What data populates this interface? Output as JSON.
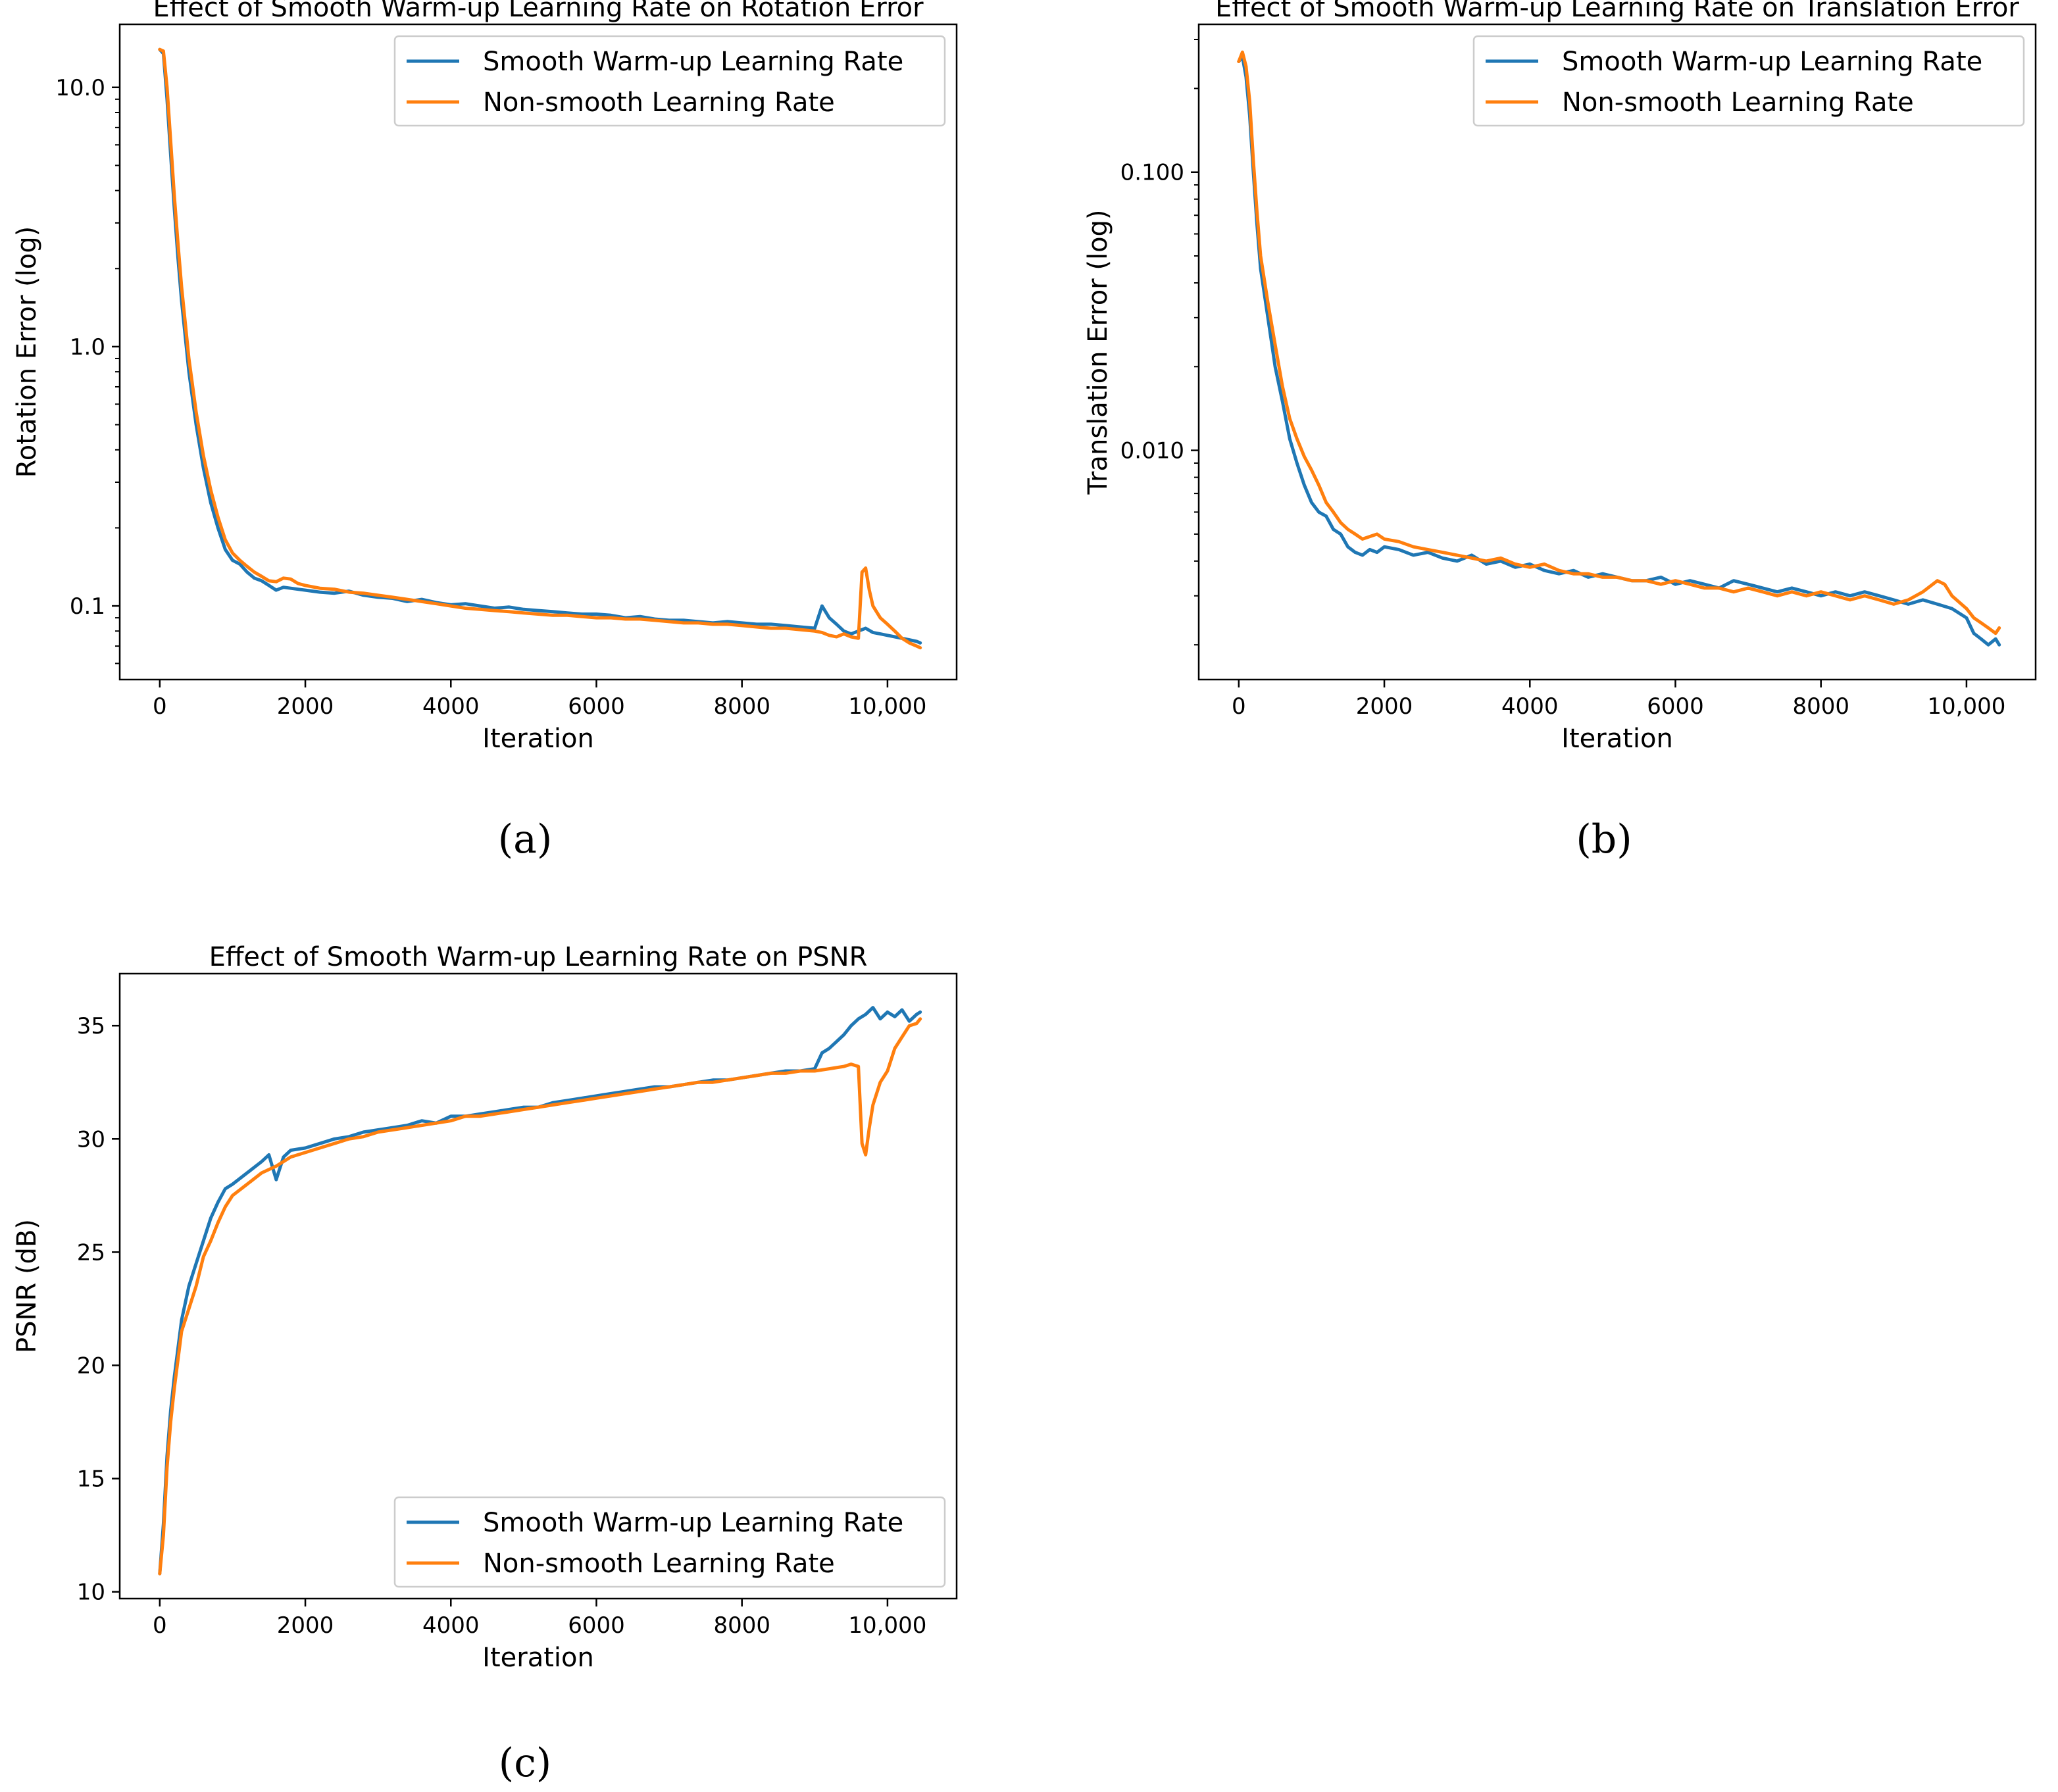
{
  "colors": {
    "smooth": "#1f77b4",
    "nonsmooth": "#ff7f0e",
    "axis": "#000000",
    "legend_border": "#cccccc"
  },
  "chart_data": [
    {
      "id": "a",
      "type": "line",
      "title": "Effect of Smooth Warm-up Learning Rate on Rotation Error",
      "xlabel": "Iteration",
      "ylabel": "Rotation Error (log)",
      "yscale": "log",
      "xlim": [
        -550,
        10950
      ],
      "ylim": [
        0.052,
        17.5
      ],
      "xticks": [
        0,
        2000,
        4000,
        6000,
        8000,
        10000
      ],
      "xtick_labels": [
        "0",
        "2000",
        "4000",
        "6000",
        "8000",
        "10,000"
      ],
      "yticks": [
        0.1,
        1.0,
        10.0
      ],
      "ytick_labels": [
        "0.1",
        "1.0",
        "10.0"
      ],
      "legend": {
        "position": "top-right",
        "entries": [
          "Smooth Warm-up Learning Rate",
          "Non-smooth Learning Rate"
        ]
      },
      "panel_label": "(a)",
      "series": [
        {
          "name": "Smooth Warm-up Learning Rate",
          "color_key": "smooth",
          "x": [
            0,
            50,
            100,
            150,
            200,
            250,
            300,
            400,
            500,
            600,
            700,
            800,
            900,
            1000,
            1100,
            1200,
            1300,
            1400,
            1500,
            1600,
            1700,
            1800,
            1900,
            2000,
            2200,
            2400,
            2600,
            2800,
            3000,
            3200,
            3400,
            3600,
            3800,
            4000,
            4200,
            4400,
            4600,
            4800,
            5000,
            5200,
            5400,
            5600,
            5800,
            6000,
            6200,
            6400,
            6600,
            6800,
            7000,
            7200,
            7400,
            7600,
            7800,
            8000,
            8200,
            8400,
            8600,
            8800,
            9000,
            9100,
            9200,
            9300,
            9400,
            9500,
            9600,
            9700,
            9800,
            9900,
            10000,
            10100,
            10200,
            10300,
            10400,
            10450
          ],
          "y": [
            14,
            13.5,
            9,
            5.5,
            3.4,
            2.2,
            1.5,
            0.8,
            0.5,
            0.34,
            0.25,
            0.2,
            0.165,
            0.15,
            0.145,
            0.135,
            0.128,
            0.125,
            0.12,
            0.115,
            0.118,
            0.117,
            0.116,
            0.115,
            0.113,
            0.112,
            0.114,
            0.11,
            0.108,
            0.107,
            0.104,
            0.106,
            0.103,
            0.101,
            0.102,
            0.1,
            0.098,
            0.099,
            0.097,
            0.096,
            0.095,
            0.094,
            0.093,
            0.093,
            0.092,
            0.09,
            0.091,
            0.089,
            0.088,
            0.088,
            0.087,
            0.086,
            0.087,
            0.086,
            0.085,
            0.085,
            0.084,
            0.083,
            0.082,
            0.1,
            0.09,
            0.085,
            0.08,
            0.078,
            0.08,
            0.082,
            0.079,
            0.078,
            0.077,
            0.076,
            0.075,
            0.074,
            0.073,
            0.072
          ]
        },
        {
          "name": "Non-smooth Learning Rate",
          "color_key": "nonsmooth",
          "x": [
            0,
            50,
            100,
            150,
            200,
            250,
            300,
            400,
            500,
            600,
            700,
            800,
            900,
            1000,
            1100,
            1200,
            1300,
            1400,
            1500,
            1600,
            1700,
            1800,
            1900,
            2000,
            2200,
            2400,
            2600,
            2800,
            3000,
            3200,
            3400,
            3600,
            3800,
            4000,
            4200,
            4400,
            4600,
            4800,
            5000,
            5200,
            5400,
            5600,
            5800,
            6000,
            6200,
            6400,
            6600,
            6800,
            7000,
            7200,
            7400,
            7600,
            7800,
            8000,
            8200,
            8400,
            8600,
            8800,
            9000,
            9100,
            9200,
            9300,
            9400,
            9500,
            9600,
            9650,
            9700,
            9750,
            9800,
            9900,
            10000,
            10100,
            10200,
            10300,
            10400,
            10450
          ],
          "y": [
            14,
            13.8,
            10,
            6.2,
            3.8,
            2.5,
            1.7,
            0.9,
            0.56,
            0.38,
            0.28,
            0.22,
            0.18,
            0.16,
            0.15,
            0.142,
            0.135,
            0.13,
            0.125,
            0.124,
            0.128,
            0.127,
            0.122,
            0.12,
            0.117,
            0.116,
            0.113,
            0.112,
            0.11,
            0.108,
            0.106,
            0.104,
            0.102,
            0.1,
            0.098,
            0.097,
            0.096,
            0.095,
            0.094,
            0.093,
            0.092,
            0.092,
            0.091,
            0.09,
            0.09,
            0.089,
            0.089,
            0.088,
            0.087,
            0.086,
            0.086,
            0.085,
            0.085,
            0.084,
            0.083,
            0.082,
            0.082,
            0.081,
            0.08,
            0.079,
            0.077,
            0.076,
            0.078,
            0.076,
            0.075,
            0.135,
            0.14,
            0.115,
            0.1,
            0.09,
            0.085,
            0.08,
            0.075,
            0.072,
            0.07,
            0.069
          ]
        }
      ]
    },
    {
      "id": "b",
      "type": "line",
      "title": "Effect of Smooth Warm-up Learning Rate on Translation Error",
      "xlabel": "Iteration",
      "ylabel": "Translation Error (log)",
      "yscale": "log",
      "xlim": [
        -550,
        10950
      ],
      "ylim": [
        0.0015,
        0.34
      ],
      "xticks": [
        0,
        2000,
        4000,
        6000,
        8000,
        10000
      ],
      "xtick_labels": [
        "0",
        "2000",
        "4000",
        "6000",
        "8000",
        "10,000"
      ],
      "yticks": [
        0.01,
        0.1
      ],
      "ytick_labels": [
        "0.010",
        "0.100"
      ],
      "legend": {
        "position": "top-right",
        "entries": [
          "Smooth Warm-up Learning Rate",
          "Non-smooth Learning Rate"
        ]
      },
      "panel_label": "(b)",
      "series": [
        {
          "name": "Smooth Warm-up Learning Rate",
          "color_key": "smooth",
          "x": [
            0,
            50,
            100,
            150,
            200,
            250,
            300,
            400,
            500,
            600,
            700,
            800,
            900,
            1000,
            1100,
            1200,
            1300,
            1400,
            1500,
            1600,
            1700,
            1800,
            1900,
            2000,
            2200,
            2400,
            2600,
            2800,
            3000,
            3200,
            3400,
            3600,
            3800,
            4000,
            4200,
            4400,
            4600,
            4800,
            5000,
            5200,
            5400,
            5600,
            5800,
            6000,
            6200,
            6400,
            6600,
            6800,
            7000,
            7200,
            7400,
            7600,
            7800,
            8000,
            8200,
            8400,
            8600,
            8800,
            9000,
            9200,
            9400,
            9600,
            9800,
            10000,
            10100,
            10200,
            10300,
            10400,
            10450
          ],
          "y": [
            0.25,
            0.26,
            0.22,
            0.16,
            0.1,
            0.065,
            0.045,
            0.03,
            0.02,
            0.015,
            0.011,
            0.009,
            0.0075,
            0.0065,
            0.006,
            0.0058,
            0.0052,
            0.005,
            0.0045,
            0.0043,
            0.0042,
            0.0044,
            0.0043,
            0.0045,
            0.0044,
            0.0042,
            0.0043,
            0.0041,
            0.004,
            0.0042,
            0.0039,
            0.004,
            0.0038,
            0.0039,
            0.0037,
            0.0036,
            0.0037,
            0.0035,
            0.0036,
            0.0035,
            0.0034,
            0.0034,
            0.0035,
            0.0033,
            0.0034,
            0.0033,
            0.0032,
            0.0034,
            0.0033,
            0.0032,
            0.0031,
            0.0032,
            0.0031,
            0.003,
            0.0031,
            0.003,
            0.0031,
            0.003,
            0.0029,
            0.0028,
            0.0029,
            0.0028,
            0.0027,
            0.0025,
            0.0022,
            0.0021,
            0.002,
            0.0021,
            0.002
          ]
        },
        {
          "name": "Non-smooth Learning Rate",
          "color_key": "nonsmooth",
          "x": [
            0,
            50,
            100,
            150,
            200,
            250,
            300,
            400,
            500,
            600,
            700,
            800,
            900,
            1000,
            1100,
            1200,
            1300,
            1400,
            1500,
            1600,
            1700,
            1800,
            1900,
            2000,
            2200,
            2400,
            2600,
            2800,
            3000,
            3200,
            3400,
            3600,
            3800,
            4000,
            4200,
            4400,
            4600,
            4800,
            5000,
            5200,
            5400,
            5600,
            5800,
            6000,
            6200,
            6400,
            6600,
            6800,
            7000,
            7200,
            7400,
            7600,
            7800,
            8000,
            8200,
            8400,
            8600,
            8800,
            9000,
            9200,
            9400,
            9600,
            9700,
            9800,
            10000,
            10100,
            10200,
            10300,
            10400,
            10450
          ],
          "y": [
            0.25,
            0.27,
            0.24,
            0.18,
            0.11,
            0.072,
            0.05,
            0.034,
            0.024,
            0.017,
            0.013,
            0.011,
            0.0095,
            0.0085,
            0.0075,
            0.0065,
            0.006,
            0.0055,
            0.0052,
            0.005,
            0.0048,
            0.0049,
            0.005,
            0.0048,
            0.0047,
            0.0045,
            0.0044,
            0.0043,
            0.0042,
            0.0041,
            0.004,
            0.0041,
            0.0039,
            0.0038,
            0.0039,
            0.0037,
            0.0036,
            0.0036,
            0.0035,
            0.0035,
            0.0034,
            0.0034,
            0.0033,
            0.0034,
            0.0033,
            0.0032,
            0.0032,
            0.0031,
            0.0032,
            0.0031,
            0.003,
            0.0031,
            0.003,
            0.0031,
            0.003,
            0.0029,
            0.003,
            0.0029,
            0.0028,
            0.0029,
            0.0031,
            0.0034,
            0.0033,
            0.003,
            0.0027,
            0.0025,
            0.0024,
            0.0023,
            0.0022,
            0.0023
          ]
        }
      ]
    },
    {
      "id": "c",
      "type": "line",
      "title": "Effect of Smooth Warm-up Learning Rate on PSNR",
      "xlabel": "Iteration",
      "ylabel": "PSNR (dB)",
      "yscale": "linear",
      "xlim": [
        -550,
        10950
      ],
      "ylim": [
        9.7,
        37.3
      ],
      "xticks": [
        0,
        2000,
        4000,
        6000,
        8000,
        10000
      ],
      "xtick_labels": [
        "0",
        "2000",
        "4000",
        "6000",
        "8000",
        "10,000"
      ],
      "yticks": [
        10,
        15,
        20,
        25,
        30,
        35
      ],
      "ytick_labels": [
        "10",
        "15",
        "20",
        "25",
        "30",
        "35"
      ],
      "legend": {
        "position": "bottom-right",
        "entries": [
          "Smooth Warm-up Learning Rate",
          "Non-smooth Learning Rate"
        ]
      },
      "panel_label": "(c)",
      "series": [
        {
          "name": "Smooth Warm-up Learning Rate",
          "color_key": "smooth",
          "x": [
            0,
            50,
            100,
            150,
            200,
            300,
            400,
            500,
            600,
            700,
            800,
            900,
            1000,
            1200,
            1400,
            1500,
            1600,
            1700,
            1800,
            2000,
            2200,
            2400,
            2600,
            2800,
            3000,
            3200,
            3400,
            3600,
            3800,
            4000,
            4200,
            4400,
            4600,
            4800,
            5000,
            5200,
            5400,
            5600,
            5800,
            6000,
            6200,
            6400,
            6600,
            6800,
            7000,
            7200,
            7400,
            7600,
            7800,
            8000,
            8200,
            8400,
            8600,
            8800,
            9000,
            9100,
            9200,
            9300,
            9400,
            9500,
            9600,
            9700,
            9800,
            9900,
            10000,
            10100,
            10200,
            10300,
            10400,
            10450
          ],
          "y": [
            10.8,
            13,
            16,
            18,
            19.5,
            22,
            23.5,
            24.5,
            25.5,
            26.5,
            27.2,
            27.8,
            28,
            28.5,
            29,
            29.3,
            28.2,
            29.2,
            29.5,
            29.6,
            29.8,
            30,
            30.1,
            30.3,
            30.4,
            30.5,
            30.6,
            30.8,
            30.7,
            31,
            31,
            31.1,
            31.2,
            31.3,
            31.4,
            31.4,
            31.6,
            31.7,
            31.8,
            31.9,
            32,
            32.1,
            32.2,
            32.3,
            32.3,
            32.4,
            32.5,
            32.6,
            32.6,
            32.7,
            32.8,
            32.9,
            33,
            33,
            33.1,
            33.8,
            34,
            34.3,
            34.6,
            35,
            35.3,
            35.5,
            35.8,
            35.3,
            35.6,
            35.4,
            35.7,
            35.2,
            35.5,
            35.6
          ]
        },
        {
          "name": "Non-smooth Learning Rate",
          "color_key": "nonsmooth",
          "x": [
            0,
            50,
            100,
            150,
            200,
            300,
            400,
            500,
            600,
            700,
            800,
            900,
            1000,
            1200,
            1400,
            1600,
            1800,
            2000,
            2200,
            2400,
            2600,
            2800,
            3000,
            3200,
            3400,
            3600,
            3800,
            4000,
            4200,
            4400,
            4600,
            4800,
            5000,
            5200,
            5400,
            5600,
            5800,
            6000,
            6200,
            6400,
            6600,
            6800,
            7000,
            7200,
            7400,
            7600,
            7800,
            8000,
            8200,
            8400,
            8600,
            8800,
            9000,
            9200,
            9400,
            9500,
            9600,
            9650,
            9700,
            9750,
            9800,
            9900,
            10000,
            10100,
            10200,
            10300,
            10400,
            10450
          ],
          "y": [
            10.8,
            12.5,
            15.5,
            17.5,
            19,
            21.5,
            22.5,
            23.5,
            24.8,
            25.5,
            26.3,
            27,
            27.5,
            28,
            28.5,
            28.8,
            29.2,
            29.4,
            29.6,
            29.8,
            30,
            30.1,
            30.3,
            30.4,
            30.5,
            30.6,
            30.7,
            30.8,
            31,
            31,
            31.1,
            31.2,
            31.3,
            31.4,
            31.5,
            31.6,
            31.7,
            31.8,
            31.9,
            32,
            32.1,
            32.2,
            32.3,
            32.4,
            32.5,
            32.5,
            32.6,
            32.7,
            32.8,
            32.9,
            32.9,
            33,
            33,
            33.1,
            33.2,
            33.3,
            33.2,
            29.8,
            29.3,
            30.5,
            31.5,
            32.5,
            33,
            34,
            34.5,
            35,
            35.1,
            35.3
          ]
        }
      ]
    }
  ]
}
